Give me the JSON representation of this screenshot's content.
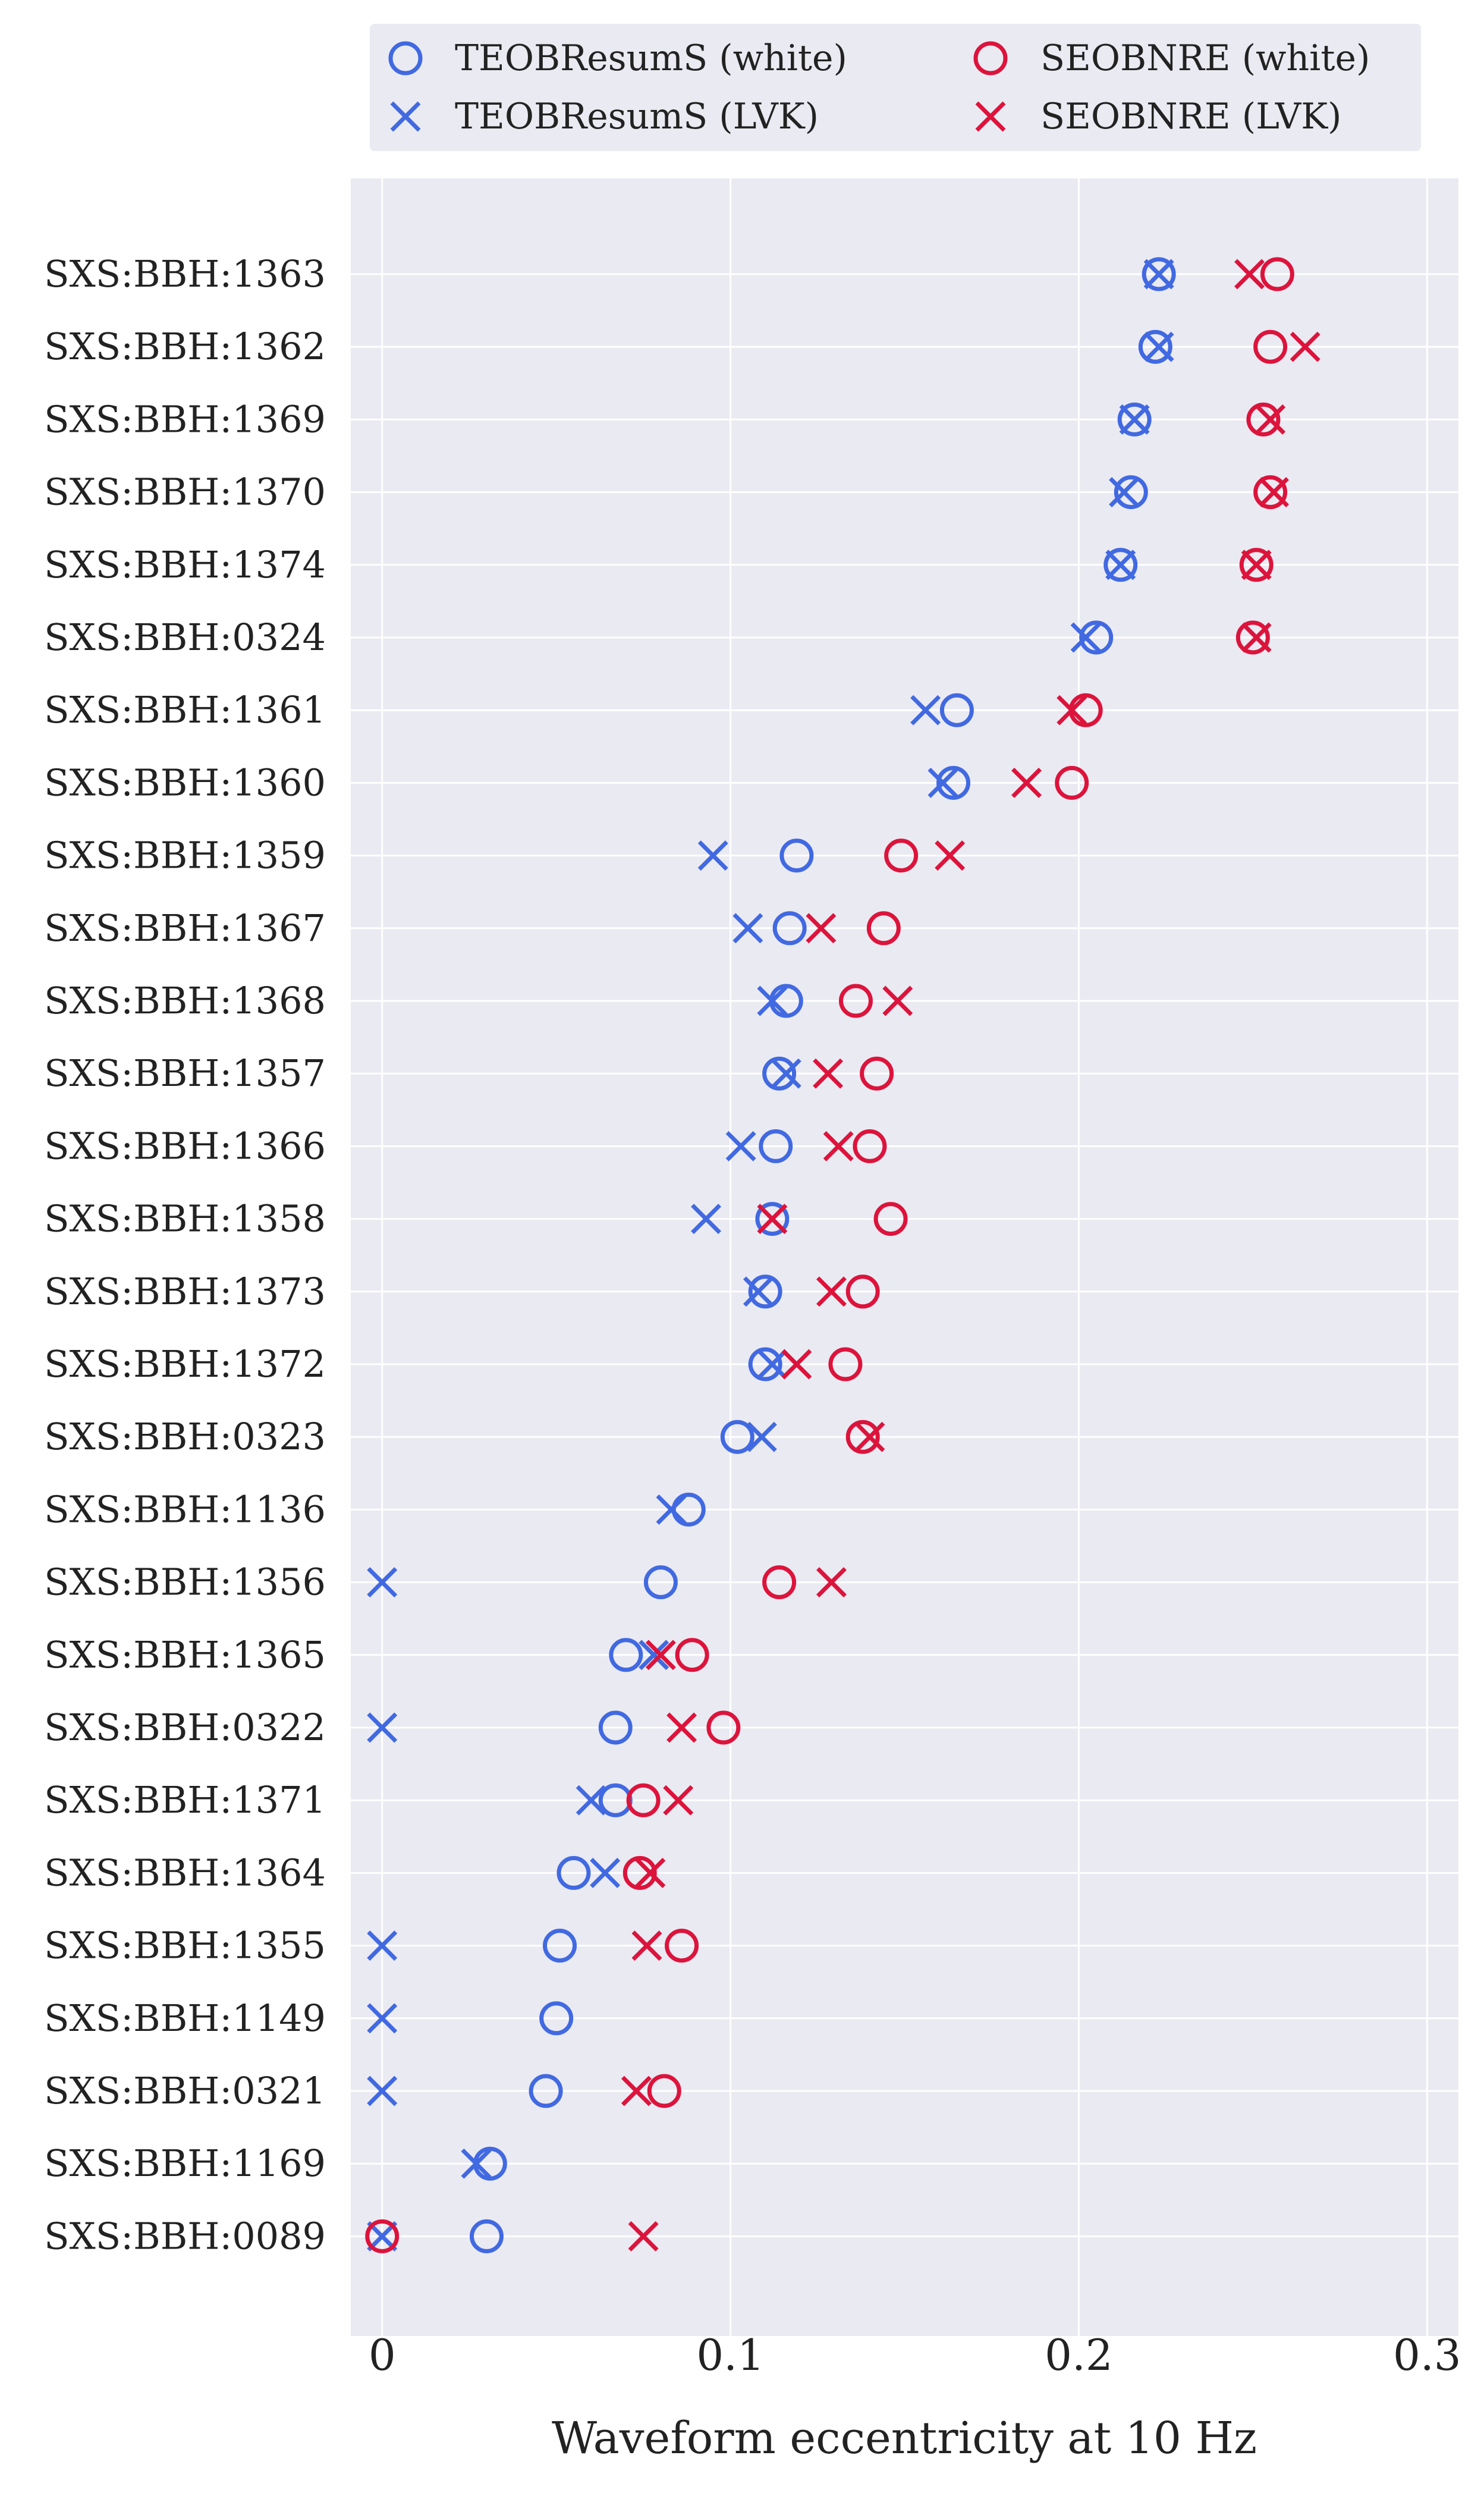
{
  "chart_data": {
    "type": "scatter",
    "xlabel": "Waveform eccentricity at 10 Hz",
    "ylabel": "",
    "xlim": [
      -0.009,
      0.309
    ],
    "x_ticks": [
      0,
      0.1,
      0.2,
      0.3
    ],
    "x_tick_labels": [
      "0",
      "0.1",
      "0.2",
      "0.3"
    ],
    "grid": true,
    "legend_position": "top",
    "categories": [
      "SXS:BBH:1363",
      "SXS:BBH:1362",
      "SXS:BBH:1369",
      "SXS:BBH:1370",
      "SXS:BBH:1374",
      "SXS:BBH:0324",
      "SXS:BBH:1361",
      "SXS:BBH:1360",
      "SXS:BBH:1359",
      "SXS:BBH:1367",
      "SXS:BBH:1368",
      "SXS:BBH:1357",
      "SXS:BBH:1366",
      "SXS:BBH:1358",
      "SXS:BBH:1373",
      "SXS:BBH:1372",
      "SXS:BBH:0323",
      "SXS:BBH:1136",
      "SXS:BBH:1356",
      "SXS:BBH:1365",
      "SXS:BBH:0322",
      "SXS:BBH:1371",
      "SXS:BBH:1364",
      "SXS:BBH:1355",
      "SXS:BBH:1149",
      "SXS:BBH:0321",
      "SXS:BBH:1169",
      "SXS:BBH:0089"
    ],
    "series": [
      {
        "name": "TEOBResumS (white)",
        "marker": "circle",
        "color": "#4169E1",
        "values": [
          0.223,
          0.222,
          0.216,
          0.215,
          0.212,
          0.205,
          0.165,
          0.164,
          0.119,
          0.117,
          0.116,
          0.114,
          0.113,
          0.112,
          0.11,
          0.11,
          0.102,
          0.088,
          0.08,
          0.07,
          0.067,
          0.067,
          0.055,
          0.051,
          0.05,
          0.047,
          0.031,
          0.03
        ]
      },
      {
        "name": "TEOBResumS (LVK)",
        "marker": "x",
        "color": "#4169E1",
        "values": [
          0.223,
          0.223,
          0.216,
          0.213,
          0.212,
          0.202,
          0.156,
          0.161,
          0.095,
          0.105,
          0.112,
          0.116,
          0.103,
          0.093,
          0.108,
          0.112,
          0.109,
          0.083,
          0.0,
          0.078,
          0.0,
          0.06,
          0.064,
          0.0,
          0.0,
          0.0,
          0.027,
          0.0
        ]
      },
      {
        "name": "SEOBNRE (white)",
        "marker": "circle",
        "color": "#DC143C",
        "values": [
          0.257,
          0.255,
          0.253,
          0.255,
          0.251,
          0.25,
          0.202,
          0.198,
          0.149,
          0.144,
          0.136,
          0.142,
          0.14,
          0.146,
          0.138,
          0.133,
          0.138,
          null,
          0.114,
          0.089,
          0.098,
          0.075,
          0.074,
          0.086,
          null,
          0.081,
          null,
          0.0
        ]
      },
      {
        "name": "SEOBNRE (LVK)",
        "marker": "x",
        "color": "#DC143C",
        "values": [
          0.249,
          0.265,
          0.255,
          0.256,
          0.251,
          0.251,
          0.198,
          0.185,
          0.163,
          0.126,
          0.148,
          0.128,
          0.131,
          0.112,
          0.129,
          0.119,
          0.14,
          null,
          0.129,
          0.08,
          0.086,
          0.085,
          0.077,
          0.076,
          null,
          0.073,
          null,
          0.075
        ]
      }
    ]
  }
}
